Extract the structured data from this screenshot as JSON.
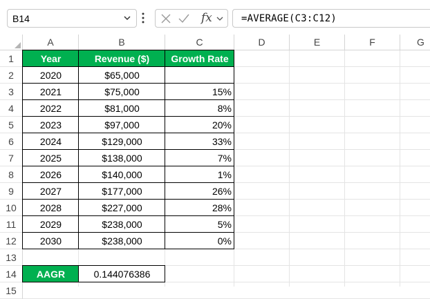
{
  "formula_bar": {
    "name_box": "B14",
    "fx_label": "fx",
    "formula": "=AVERAGE(C3:C12)"
  },
  "columns": [
    "A",
    "B",
    "C",
    "D",
    "E",
    "F",
    "G"
  ],
  "rows": [
    "1",
    "2",
    "3",
    "4",
    "5",
    "6",
    "7",
    "8",
    "9",
    "10",
    "11",
    "12",
    "13",
    "14",
    "15"
  ],
  "table": {
    "headers": [
      "Year",
      "Revenue ($)",
      "Growth Rate"
    ],
    "rows": [
      [
        "2020",
        "$65,000",
        ""
      ],
      [
        "2021",
        "$75,000",
        "15%"
      ],
      [
        "2022",
        "$81,000",
        "8%"
      ],
      [
        "2023",
        "$97,000",
        "20%"
      ],
      [
        "2024",
        "$129,000",
        "33%"
      ],
      [
        "2025",
        "$138,000",
        "7%"
      ],
      [
        "2026",
        "$140,000",
        "1%"
      ],
      [
        "2027",
        "$177,000",
        "26%"
      ],
      [
        "2028",
        "$227,000",
        "28%"
      ],
      [
        "2029",
        "$238,000",
        "5%"
      ],
      [
        "2030",
        "$238,000",
        "0%"
      ]
    ]
  },
  "summary": {
    "label": "AAGR",
    "value": "0.144076386"
  },
  "colors": {
    "header_green": "#00b050",
    "header_text": "#ffffff",
    "grid": "#e4e4e4"
  }
}
